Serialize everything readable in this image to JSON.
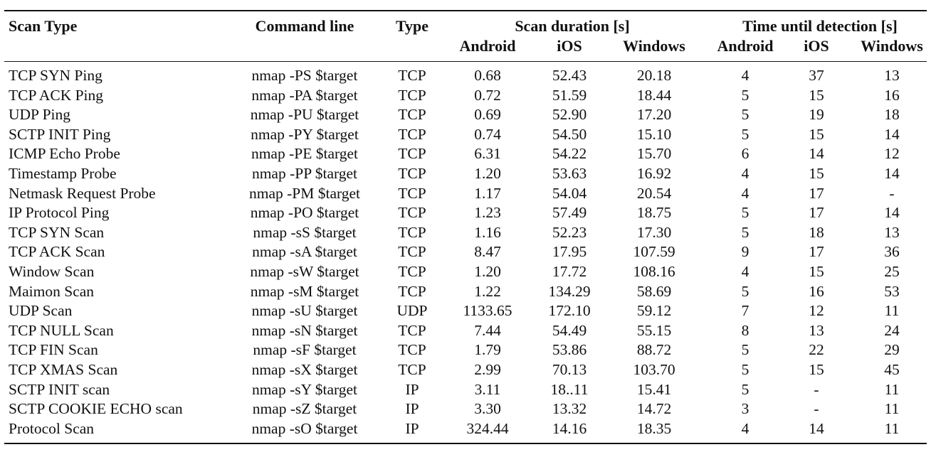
{
  "header": {
    "scan_type": "Scan Type",
    "command_line": "Command line",
    "type": "Type",
    "scan_duration": "Scan duration [s]",
    "time_until_detection": "Time until detection [s]",
    "sub": {
      "android": "Android",
      "ios": "iOS",
      "windows": "Windows"
    }
  },
  "rows": [
    {
      "name": "TCP SYN Ping",
      "cmd": "nmap -PS $target",
      "type": "TCP",
      "d_android": "0.68",
      "d_ios": "52.43",
      "d_windows": "20.18",
      "t_android": "4",
      "t_ios": "37",
      "t_windows": "13"
    },
    {
      "name": "TCP ACK Ping",
      "cmd": "nmap -PA $target",
      "type": "TCP",
      "d_android": "0.72",
      "d_ios": "51.59",
      "d_windows": "18.44",
      "t_android": "5",
      "t_ios": "15",
      "t_windows": "16"
    },
    {
      "name": "UDP Ping",
      "cmd": "nmap -PU $target",
      "type": "TCP",
      "d_android": "0.69",
      "d_ios": "52.90",
      "d_windows": "17.20",
      "t_android": "5",
      "t_ios": "19",
      "t_windows": "18"
    },
    {
      "name": "SCTP INIT Ping",
      "cmd": "nmap -PY $target",
      "type": "TCP",
      "d_android": "0.74",
      "d_ios": "54.50",
      "d_windows": "15.10",
      "t_android": "5",
      "t_ios": "15",
      "t_windows": "14"
    },
    {
      "name": "ICMP Echo Probe",
      "cmd": "nmap -PE $target",
      "type": "TCP",
      "d_android": "6.31",
      "d_ios": "54.22",
      "d_windows": "15.70",
      "t_android": "6",
      "t_ios": "14",
      "t_windows": "12"
    },
    {
      "name": "Timestamp Probe",
      "cmd": "nmap -PP $target",
      "type": "TCP",
      "d_android": "1.20",
      "d_ios": "53.63",
      "d_windows": "16.92",
      "t_android": "4",
      "t_ios": "15",
      "t_windows": "14"
    },
    {
      "name": "Netmask Request Probe",
      "cmd": "nmap -PM $target",
      "type": "TCP",
      "d_android": "1.17",
      "d_ios": "54.04",
      "d_windows": "20.54",
      "t_android": "4",
      "t_ios": "17",
      "t_windows": "-"
    },
    {
      "name": "IP Protocol Ping",
      "cmd": "nmap -PO $target",
      "type": "TCP",
      "d_android": "1.23",
      "d_ios": "57.49",
      "d_windows": "18.75",
      "t_android": "5",
      "t_ios": "17",
      "t_windows": "14"
    },
    {
      "name": "TCP SYN Scan",
      "cmd": "nmap -sS $target",
      "type": "TCP",
      "d_android": "1.16",
      "d_ios": "52.23",
      "d_windows": "17.30",
      "t_android": "5",
      "t_ios": "18",
      "t_windows": "13"
    },
    {
      "name": "TCP ACK Scan",
      "cmd": "nmap -sA $target",
      "type": "TCP",
      "d_android": "8.47",
      "d_ios": "17.95",
      "d_windows": "107.59",
      "t_android": "9",
      "t_ios": "17",
      "t_windows": "36"
    },
    {
      "name": "Window Scan",
      "cmd": "nmap -sW $target",
      "type": "TCP",
      "d_android": "1.20",
      "d_ios": "17.72",
      "d_windows": "108.16",
      "t_android": "4",
      "t_ios": "15",
      "t_windows": "25"
    },
    {
      "name": "Maimon Scan",
      "cmd": "nmap -sM $target",
      "type": "TCP",
      "d_android": "1.22",
      "d_ios": "134.29",
      "d_windows": "58.69",
      "t_android": "5",
      "t_ios": "16",
      "t_windows": "53"
    },
    {
      "name": "UDP Scan",
      "cmd": "nmap -sU $target",
      "type": "UDP",
      "d_android": "1133.65",
      "d_ios": "172.10",
      "d_windows": "59.12",
      "t_android": "7",
      "t_ios": "12",
      "t_windows": "11"
    },
    {
      "name": "TCP NULL Scan",
      "cmd": "nmap -sN $target",
      "type": "TCP",
      "d_android": "7.44",
      "d_ios": "54.49",
      "d_windows": "55.15",
      "t_android": "8",
      "t_ios": "13",
      "t_windows": "24"
    },
    {
      "name": "TCP FIN Scan",
      "cmd": "nmap -sF $target",
      "type": "TCP",
      "d_android": "1.79",
      "d_ios": "53.86",
      "d_windows": "88.72",
      "t_android": "5",
      "t_ios": "22",
      "t_windows": "29"
    },
    {
      "name": "TCP XMAS Scan",
      "cmd": "nmap -sX $target",
      "type": "TCP",
      "d_android": "2.99",
      "d_ios": "70.13",
      "d_windows": "103.70",
      "t_android": "5",
      "t_ios": "15",
      "t_windows": "45"
    },
    {
      "name": "SCTP INIT scan",
      "cmd": "nmap -sY $target",
      "type": "IP",
      "d_android": "3.11",
      "d_ios": "18..11",
      "d_windows": "15.41",
      "t_android": "5",
      "t_ios": "-",
      "t_windows": "11"
    },
    {
      "name": "SCTP COOKIE ECHO scan",
      "cmd": "nmap -sZ $target",
      "type": "IP",
      "d_android": "3.30",
      "d_ios": "13.32",
      "d_windows": "14.72",
      "t_android": "3",
      "t_ios": "-",
      "t_windows": "11"
    },
    {
      "name": "Protocol Scan",
      "cmd": "nmap -sO $target",
      "type": "IP",
      "d_android": "324.44",
      "d_ios": "14.16",
      "d_windows": "18.35",
      "t_android": "4",
      "t_ios": "14",
      "t_windows": "11"
    }
  ]
}
